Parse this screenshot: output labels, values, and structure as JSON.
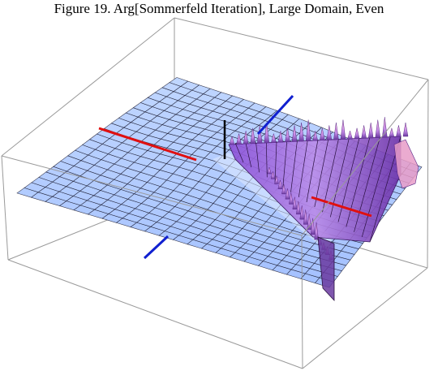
{
  "figure": {
    "title": "Figure 19. Arg[Sommerfeld Iteration], Large Domain, Even"
  },
  "chart_data": {
    "type": "surface3d",
    "title": "Figure 19. Arg[Sommerfeld Iteration], Large Domain, Even",
    "xlabel": "",
    "ylabel": "",
    "zlabel": "",
    "box": true,
    "axes_ticks": false,
    "mesh": true,
    "colors": {
      "surface_base": "#8fb4ff",
      "surface_light": "#cfe0ff",
      "surface_dark": "#5f7fd8",
      "spike_main": "#b07ae6",
      "spike_light": "#ffb0d8",
      "spike_dark": "#5a2a8a",
      "mesh": "#1a1a2e",
      "box": "#9a9a9a",
      "red_line": "#e01010",
      "blue_line": "#1020d0",
      "black_line": "#000000"
    },
    "overlay_lines": [
      {
        "color": "red",
        "description": "horizontal reference line"
      },
      {
        "color": "blue",
        "description": "vertical reference line"
      },
      {
        "color": "black",
        "description": "short vertical marker"
      }
    ]
  }
}
